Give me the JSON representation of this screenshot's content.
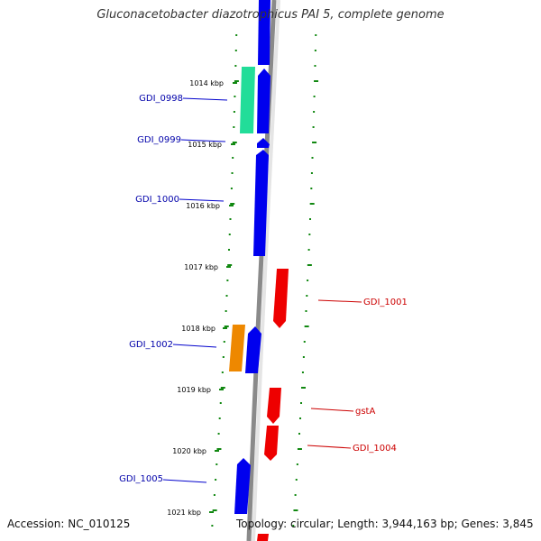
{
  "title": "Gluconacetobacter diazotrophicus PAI 5, complete genome",
  "accession": "Accession: NC_010125",
  "topology": "Topology: circular; Length: 3,944,163 bp; Genes: 3,845",
  "colors": {
    "forward": "#0000ee",
    "reverse": "#ee0000",
    "green": "#22dd99",
    "orange": "#ee8800",
    "tick": "#118811",
    "backbone": "#888888"
  },
  "ticks": [
    "1014 kbp",
    "1015 kbp",
    "1016 kbp",
    "1017 kbp",
    "1018 kbp",
    "1019 kbp",
    "1020 kbp",
    "1021 kbp"
  ],
  "gene_labels_left": [
    "GDI_0998",
    "GDI_0999",
    "GDI_1000",
    "GDI_1002",
    "GDI_1005"
  ],
  "gene_labels_right": [
    "GDI_1001",
    "gstA",
    "GDI_1004"
  ]
}
